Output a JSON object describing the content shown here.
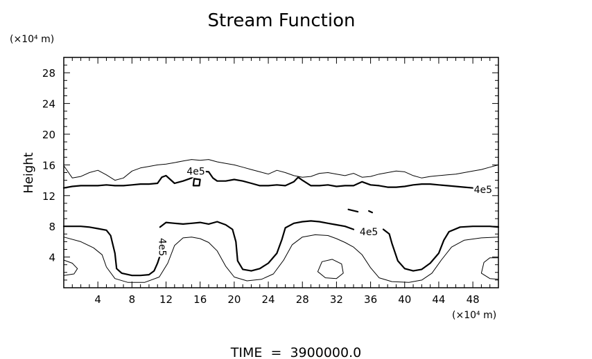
{
  "chart_data": {
    "type": "contour",
    "title": "Stream Function",
    "ylabel": "Height",
    "yunit": "(×10⁴ m)",
    "xunit": "(×10⁴ m)",
    "xlim": [
      0,
      51
    ],
    "ylim": [
      0,
      30
    ],
    "xticks": [
      4,
      8,
      12,
      16,
      20,
      24,
      28,
      32,
      36,
      40,
      44,
      48
    ],
    "yticks": [
      4,
      8,
      12,
      16,
      20,
      24,
      28
    ],
    "footer": "TIME  =  3900000.0",
    "contour_labels": [
      {
        "text": "4e5",
        "x": 15.5,
        "y": 15.1
      },
      {
        "text": "4e5",
        "x": 49.2,
        "y": 12.7
      },
      {
        "text": "4e5",
        "x": 35.8,
        "y": 7.2
      },
      {
        "text": "4e5",
        "x": 11.5,
        "y": 5.3,
        "rotate": 90
      }
    ],
    "series": [
      {
        "style": "thin",
        "points": [
          [
            0,
            15.9
          ],
          [
            1,
            14.3
          ],
          [
            2,
            14.5
          ],
          [
            3,
            15
          ],
          [
            4,
            15.3
          ],
          [
            5,
            14.7
          ],
          [
            6,
            14
          ],
          [
            7,
            14.3
          ],
          [
            8,
            15.2
          ],
          [
            9,
            15.6
          ],
          [
            10,
            15.8
          ],
          [
            11,
            16
          ],
          [
            12,
            16.1
          ],
          [
            13,
            16.3
          ],
          [
            14,
            16.5
          ],
          [
            15,
            16.7
          ],
          [
            16,
            16.6
          ],
          [
            17,
            16.7
          ],
          [
            18,
            16.4
          ],
          [
            19,
            16.2
          ],
          [
            20,
            16
          ],
          [
            21,
            15.7
          ],
          [
            22,
            15.4
          ],
          [
            23,
            15.1
          ],
          [
            24,
            14.8
          ],
          [
            25,
            15.3
          ],
          [
            26,
            15
          ],
          [
            27,
            14.6
          ],
          [
            28,
            14.4
          ],
          [
            29,
            14.5
          ],
          [
            30,
            14.9
          ],
          [
            31,
            15
          ],
          [
            32,
            14.8
          ],
          [
            33,
            14.6
          ],
          [
            34,
            14.9
          ],
          [
            35,
            14.4
          ],
          [
            36,
            14.5
          ],
          [
            37,
            14.8
          ],
          [
            38,
            15
          ],
          [
            39,
            15.2
          ],
          [
            40,
            15.1
          ],
          [
            41,
            14.6
          ],
          [
            42,
            14.3
          ],
          [
            43,
            14.5
          ],
          [
            44,
            14.6
          ],
          [
            45,
            14.7
          ],
          [
            46,
            14.8
          ],
          [
            47,
            15
          ],
          [
            48,
            15.2
          ],
          [
            49,
            15.4
          ],
          [
            50,
            15.7
          ],
          [
            51,
            16
          ]
        ]
      },
      {
        "style": "thick",
        "points": [
          [
            0,
            13
          ],
          [
            1,
            13.2
          ],
          [
            2,
            13.3
          ],
          [
            3,
            13.3
          ],
          [
            4,
            13.3
          ],
          [
            5,
            13.4
          ],
          [
            6,
            13.3
          ],
          [
            7,
            13.3
          ],
          [
            8,
            13.4
          ],
          [
            9,
            13.5
          ],
          [
            10,
            13.5
          ],
          [
            11,
            13.6
          ],
          [
            11.5,
            14.4
          ],
          [
            12,
            14.6
          ],
          [
            12.5,
            14.1
          ],
          [
            13,
            13.6
          ],
          [
            14,
            13.9
          ],
          [
            15,
            14.3
          ],
          [
            16,
            15.2
          ],
          [
            17,
            15.1
          ],
          [
            17.5,
            14.3
          ],
          [
            18,
            13.9
          ],
          [
            19,
            13.9
          ],
          [
            20,
            14.1
          ],
          [
            21,
            13.9
          ],
          [
            22,
            13.6
          ],
          [
            23,
            13.3
          ],
          [
            24,
            13.3
          ],
          [
            25,
            13.4
          ],
          [
            26,
            13.3
          ],
          [
            27,
            13.8
          ],
          [
            27.5,
            14.4
          ],
          [
            28,
            14
          ],
          [
            29,
            13.3
          ],
          [
            30,
            13.3
          ],
          [
            31,
            13.4
          ],
          [
            32,
            13.2
          ],
          [
            33,
            13.3
          ],
          [
            34,
            13.3
          ],
          [
            35,
            13.8
          ],
          [
            36,
            13.4
          ],
          [
            37,
            13.3
          ],
          [
            38,
            13.1
          ],
          [
            39,
            13.1
          ],
          [
            40,
            13.2
          ],
          [
            41,
            13.4
          ],
          [
            42,
            13.5
          ],
          [
            43,
            13.5
          ],
          [
            44,
            13.4
          ],
          [
            45,
            13.3
          ],
          [
            46,
            13.2
          ],
          [
            47,
            13.1
          ],
          [
            48,
            13
          ],
          [
            49,
            12.8
          ]
        ]
      },
      {
        "style": "thick",
        "closed": true,
        "points": [
          [
            15.2,
            13.3
          ],
          [
            15.9,
            13.3
          ],
          [
            16,
            14.1
          ],
          [
            15.3,
            14.2
          ]
        ]
      },
      {
        "style": "thick",
        "points": [
          [
            33.4,
            10.2
          ],
          [
            34.5,
            9.9
          ]
        ]
      },
      {
        "style": "thick",
        "points": [
          [
            35.8,
            10
          ],
          [
            36.2,
            9.8
          ]
        ]
      },
      {
        "style": "thick",
        "points": [
          [
            0,
            8
          ],
          [
            1,
            8
          ],
          [
            2,
            8
          ],
          [
            3,
            7.9
          ],
          [
            4,
            7.7
          ],
          [
            5,
            7.5
          ],
          [
            5.5,
            6.8
          ],
          [
            6,
            4.5
          ],
          [
            6.2,
            2.5
          ],
          [
            6.8,
            1.9
          ],
          [
            8,
            1.6
          ],
          [
            9,
            1.6
          ],
          [
            10,
            1.7
          ],
          [
            10.6,
            2.2
          ],
          [
            11,
            3.2
          ],
          [
            11.3,
            4.2
          ]
        ]
      },
      {
        "style": "thick",
        "points": [
          [
            11.3,
            7.9
          ],
          [
            12,
            8.5
          ],
          [
            13,
            8.4
          ],
          [
            14,
            8.3
          ],
          [
            15,
            8.4
          ],
          [
            16,
            8.5
          ],
          [
            17,
            8.3
          ],
          [
            18,
            8.6
          ],
          [
            19,
            8.2
          ],
          [
            19.8,
            7.6
          ],
          [
            20.2,
            6
          ],
          [
            20.4,
            3.5
          ],
          [
            21,
            2.4
          ],
          [
            22,
            2.2
          ],
          [
            23,
            2.5
          ],
          [
            24,
            3.2
          ],
          [
            25,
            4.5
          ],
          [
            25.6,
            6.3
          ],
          [
            26,
            7.8
          ],
          [
            27,
            8.4
          ],
          [
            28,
            8.6
          ],
          [
            29,
            8.7
          ],
          [
            30,
            8.6
          ],
          [
            31,
            8.4
          ],
          [
            32,
            8.2
          ],
          [
            33,
            8
          ],
          [
            34,
            7.6
          ]
        ]
      },
      {
        "style": "thick",
        "points": [
          [
            37.5,
            7.6
          ],
          [
            38.2,
            7
          ],
          [
            38.5,
            5.8
          ],
          [
            39.2,
            3.5
          ],
          [
            40,
            2.5
          ],
          [
            41,
            2.2
          ],
          [
            42,
            2.4
          ],
          [
            43,
            3.2
          ],
          [
            44,
            4.5
          ],
          [
            44.6,
            6.2
          ],
          [
            45.2,
            7.3
          ],
          [
            46.5,
            7.9
          ],
          [
            48,
            8
          ],
          [
            50,
            8
          ],
          [
            51,
            7.9
          ]
        ]
      },
      {
        "style": "thin",
        "points": [
          [
            0,
            6.6
          ],
          [
            2,
            6
          ],
          [
            3.5,
            5.2
          ],
          [
            4.5,
            4.3
          ],
          [
            5,
            2.7
          ],
          [
            6,
            1.2
          ],
          [
            7.5,
            0.7
          ],
          [
            9.5,
            0.7
          ],
          [
            11.2,
            1.4
          ],
          [
            12.2,
            3.2
          ],
          [
            13,
            5.5
          ],
          [
            14,
            6.5
          ],
          [
            15,
            6.6
          ],
          [
            16,
            6.4
          ],
          [
            17,
            5.9
          ],
          [
            18,
            4.8
          ],
          [
            19,
            2.8
          ],
          [
            20,
            1.4
          ],
          [
            21.5,
            0.9
          ],
          [
            23.2,
            1.1
          ],
          [
            24.6,
            1.8
          ],
          [
            25.8,
            3.6
          ],
          [
            26.8,
            5.6
          ],
          [
            28,
            6.6
          ],
          [
            29.5,
            6.9
          ],
          [
            31,
            6.8
          ],
          [
            32,
            6.4
          ],
          [
            33,
            5.9
          ],
          [
            34,
            5.3
          ],
          [
            35,
            4.3
          ],
          [
            36,
            2.6
          ],
          [
            37,
            1.3
          ],
          [
            38.5,
            0.8
          ],
          [
            40.5,
            0.7
          ],
          [
            42,
            1
          ],
          [
            43.2,
            1.9
          ],
          [
            44.3,
            3.6
          ],
          [
            45.5,
            5.3
          ],
          [
            47,
            6.2
          ],
          [
            49,
            6.5
          ],
          [
            51,
            6.6
          ]
        ]
      },
      {
        "style": "thin",
        "closed": true,
        "points": [
          [
            29.8,
            2.1
          ],
          [
            30.7,
            1.3
          ],
          [
            32,
            1.2
          ],
          [
            32.8,
            1.9
          ],
          [
            32.6,
            3.1
          ],
          [
            31.5,
            3.7
          ],
          [
            30.3,
            3.4
          ]
        ]
      },
      {
        "style": "thin",
        "closed": true,
        "points": [
          [
            49,
            1.9
          ],
          [
            50,
            1.2
          ],
          [
            51,
            1.1
          ],
          [
            51,
            3.9
          ],
          [
            50,
            3.9
          ],
          [
            49.3,
            3.3
          ]
        ]
      },
      {
        "style": "thin",
        "points": [
          [
            0,
            3.6
          ],
          [
            1,
            3.2
          ],
          [
            1.6,
            2.5
          ],
          [
            1.2,
            1.8
          ],
          [
            0,
            1.6
          ]
        ]
      }
    ]
  }
}
